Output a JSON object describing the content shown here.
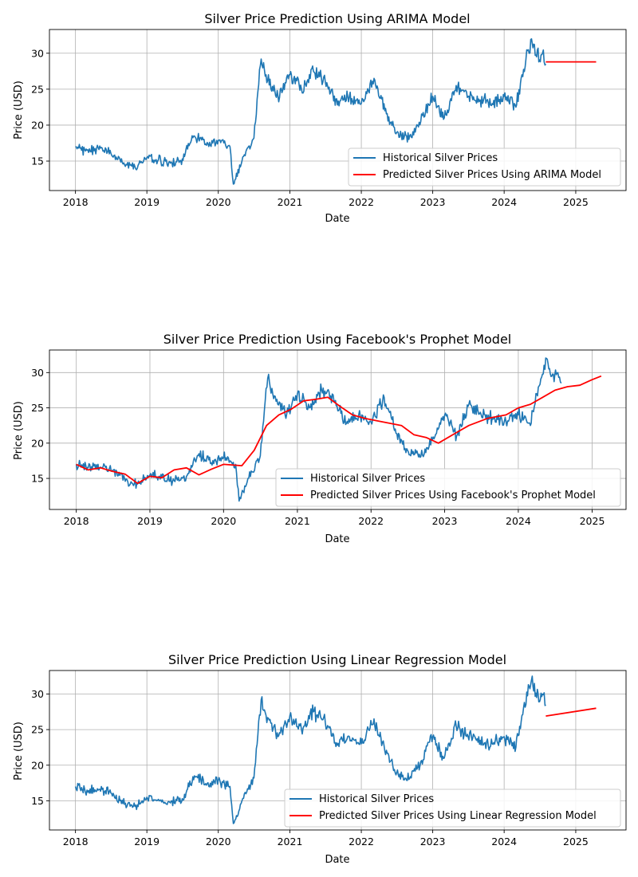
{
  "figure": {
    "background": "#ffffff"
  },
  "colors": {
    "historical": "#1f77b4",
    "predicted": "#ff0000",
    "grid": "#b0b0b0"
  },
  "chart_data": [
    {
      "type": "line",
      "title": "Silver Price Prediction Using ARIMA Model",
      "xlabel": "Date",
      "ylabel": "Price (USD)",
      "xlim": [
        "2017-08-21",
        "2025-09-15"
      ],
      "ylim": [
        10.9,
        33.3
      ],
      "xticks": [
        "2018",
        "2019",
        "2020",
        "2021",
        "2022",
        "2023",
        "2024",
        "2025"
      ],
      "yticks": [
        15,
        20,
        25,
        30
      ],
      "grid": true,
      "legend_position": "lower right",
      "series": [
        {
          "name": "Historical Silver Prices",
          "color": "#1f77b4",
          "x": [
            "2018-01-01",
            "2018-03-01",
            "2018-05-01",
            "2018-07-01",
            "2018-09-01",
            "2018-11-01",
            "2019-01-01",
            "2019-03-01",
            "2019-05-01",
            "2019-07-01",
            "2019-09-01",
            "2019-11-01",
            "2020-01-01",
            "2020-03-01",
            "2020-03-18",
            "2020-05-01",
            "2020-07-01",
            "2020-08-07",
            "2020-09-01",
            "2020-11-01",
            "2021-01-01",
            "2021-02-01",
            "2021-03-01",
            "2021-05-01",
            "2021-07-01",
            "2021-09-01",
            "2021-11-01",
            "2022-01-01",
            "2022-03-07",
            "2022-05-01",
            "2022-07-01",
            "2022-09-01",
            "2022-11-01",
            "2023-01-01",
            "2023-03-01",
            "2023-05-01",
            "2023-07-01",
            "2023-09-01",
            "2023-11-01",
            "2024-01-01",
            "2024-03-01",
            "2024-04-01",
            "2024-05-20",
            "2024-06-15",
            "2024-07-15",
            "2024-08-01"
          ],
          "y": [
            17.0,
            16.5,
            16.6,
            16.1,
            14.6,
            14.2,
            15.5,
            15.2,
            14.7,
            15.3,
            18.5,
            17.2,
            17.9,
            17.0,
            11.8,
            15.0,
            18.2,
            29.2,
            27.0,
            24.0,
            27.0,
            26.5,
            25.0,
            27.5,
            26.0,
            22.8,
            24.0,
            23.0,
            26.5,
            22.0,
            19.0,
            18.0,
            20.5,
            24.0,
            21.0,
            25.5,
            24.0,
            23.5,
            23.0,
            24.0,
            22.5,
            27.0,
            32.0,
            29.5,
            30.0,
            28.5
          ]
        },
        {
          "name": "Predicted Silver Prices Using ARIMA Model",
          "color": "#ff0000",
          "x": [
            "2024-08-01",
            "2025-04-15"
          ],
          "y": [
            28.8,
            28.8
          ]
        }
      ]
    },
    {
      "type": "line",
      "title": "Silver Price Prediction Using Facebook's Prophet Model",
      "xlabel": "Date",
      "ylabel": "Price (USD)",
      "xlim": [
        "2017-08-21",
        "2025-06-18"
      ],
      "ylim": [
        10.6,
        33.2
      ],
      "xticks": [
        "2018",
        "2019",
        "2020",
        "2021",
        "2022",
        "2023",
        "2024",
        "2025"
      ],
      "yticks": [
        15,
        20,
        25,
        30
      ],
      "grid": true,
      "legend_position": "lower right",
      "series": [
        {
          "name": "Historical Silver Prices",
          "color": "#1f77b4",
          "x": [
            "2018-01-01",
            "2018-03-01",
            "2018-05-01",
            "2018-07-01",
            "2018-09-01",
            "2018-11-01",
            "2019-01-01",
            "2019-03-01",
            "2019-05-01",
            "2019-07-01",
            "2019-09-01",
            "2019-11-01",
            "2020-01-01",
            "2020-03-01",
            "2020-03-18",
            "2020-05-01",
            "2020-07-01",
            "2020-08-07",
            "2020-09-01",
            "2020-11-01",
            "2021-01-01",
            "2021-02-01",
            "2021-03-01",
            "2021-05-01",
            "2021-07-01",
            "2021-09-01",
            "2021-11-01",
            "2022-01-01",
            "2022-03-07",
            "2022-05-01",
            "2022-07-01",
            "2022-09-01",
            "2022-11-01",
            "2023-01-01",
            "2023-03-01",
            "2023-05-01",
            "2023-07-01",
            "2023-09-01",
            "2023-11-01",
            "2024-01-01",
            "2024-03-01",
            "2024-04-01",
            "2024-05-20",
            "2024-06-15",
            "2024-07-15",
            "2024-08-01"
          ],
          "y": [
            17.0,
            16.5,
            16.6,
            16.1,
            14.6,
            14.2,
            15.5,
            15.2,
            14.7,
            15.3,
            18.5,
            17.2,
            17.9,
            17.0,
            11.8,
            15.0,
            18.2,
            29.2,
            27.0,
            24.0,
            27.0,
            26.5,
            25.0,
            27.5,
            26.0,
            22.8,
            24.0,
            23.0,
            26.5,
            22.0,
            19.0,
            18.0,
            20.5,
            24.0,
            21.0,
            25.5,
            24.0,
            23.5,
            23.0,
            24.0,
            22.5,
            27.0,
            32.0,
            29.5,
            30.0,
            28.5
          ]
        },
        {
          "name": "Predicted Silver Prices Using Facebook's Prophet Model",
          "color": "#ff0000",
          "x": [
            "2018-01-01",
            "2018-03-01",
            "2018-05-01",
            "2018-07-01",
            "2018-09-01",
            "2018-11-01",
            "2019-01-01",
            "2019-03-01",
            "2019-05-01",
            "2019-07-01",
            "2019-09-01",
            "2019-11-01",
            "2020-01-01",
            "2020-04-01",
            "2020-06-01",
            "2020-08-01",
            "2020-10-01",
            "2020-12-01",
            "2021-02-01",
            "2021-04-01",
            "2021-06-01",
            "2021-08-01",
            "2021-10-01",
            "2021-12-01",
            "2022-03-01",
            "2022-06-01",
            "2022-08-01",
            "2022-10-01",
            "2022-12-01",
            "2023-03-01",
            "2023-05-01",
            "2023-08-01",
            "2023-11-01",
            "2024-01-01",
            "2024-03-01",
            "2024-05-01",
            "2024-07-01",
            "2024-09-01",
            "2024-11-01",
            "2025-01-01",
            "2025-02-15"
          ],
          "y": [
            17.0,
            16.2,
            16.5,
            16.0,
            15.6,
            14.3,
            15.3,
            15.1,
            16.2,
            16.5,
            15.5,
            16.3,
            17.0,
            16.8,
            19.0,
            22.5,
            24.0,
            24.8,
            26.0,
            26.2,
            26.5,
            25.2,
            24.0,
            23.5,
            23.0,
            22.5,
            21.2,
            20.8,
            20.0,
            21.5,
            22.5,
            23.5,
            24.0,
            25.0,
            25.5,
            26.5,
            27.5,
            28.0,
            28.2,
            29.0,
            29.5
          ]
        }
      ]
    },
    {
      "type": "line",
      "title": "Silver Price Prediction Using Linear Regression Model",
      "xlabel": "Date",
      "ylabel": "Price (USD)",
      "xlim": [
        "2017-08-21",
        "2025-09-15"
      ],
      "ylim": [
        10.9,
        33.3
      ],
      "xticks": [
        "2018",
        "2019",
        "2020",
        "2021",
        "2022",
        "2023",
        "2024",
        "2025"
      ],
      "yticks": [
        15,
        20,
        25,
        30
      ],
      "grid": true,
      "legend_position": "lower right",
      "series": [
        {
          "name": "Historical Silver Prices",
          "color": "#1f77b4",
          "x": [
            "2018-01-01",
            "2018-03-01",
            "2018-05-01",
            "2018-07-01",
            "2018-09-01",
            "2018-11-01",
            "2019-01-01",
            "2019-03-01",
            "2019-05-01",
            "2019-07-01",
            "2019-09-01",
            "2019-11-01",
            "2020-01-01",
            "2020-03-01",
            "2020-03-18",
            "2020-05-01",
            "2020-07-01",
            "2020-08-07",
            "2020-09-01",
            "2020-11-01",
            "2021-01-01",
            "2021-02-01",
            "2021-03-01",
            "2021-05-01",
            "2021-07-01",
            "2021-09-01",
            "2021-11-01",
            "2022-01-01",
            "2022-03-07",
            "2022-05-01",
            "2022-07-01",
            "2022-09-01",
            "2022-11-01",
            "2023-01-01",
            "2023-03-01",
            "2023-05-01",
            "2023-07-01",
            "2023-09-01",
            "2023-11-01",
            "2024-01-01",
            "2024-03-01",
            "2024-04-01",
            "2024-05-20",
            "2024-06-15",
            "2024-07-15",
            "2024-08-01"
          ],
          "y": [
            17.0,
            16.5,
            16.6,
            16.1,
            14.6,
            14.2,
            15.5,
            15.2,
            14.7,
            15.3,
            18.5,
            17.2,
            17.9,
            17.0,
            11.8,
            15.0,
            18.2,
            29.2,
            27.0,
            24.0,
            27.0,
            26.5,
            25.0,
            27.5,
            26.0,
            22.8,
            24.0,
            23.0,
            26.5,
            22.0,
            19.0,
            18.0,
            20.5,
            24.0,
            21.0,
            25.5,
            24.0,
            23.5,
            23.0,
            24.0,
            22.5,
            27.0,
            32.0,
            29.5,
            30.0,
            28.5
          ]
        },
        {
          "name": "Predicted Silver Prices Using Linear Regression Model",
          "color": "#ff0000",
          "x": [
            "2024-08-01",
            "2025-04-15"
          ],
          "y": [
            26.9,
            28.0
          ]
        }
      ]
    }
  ]
}
